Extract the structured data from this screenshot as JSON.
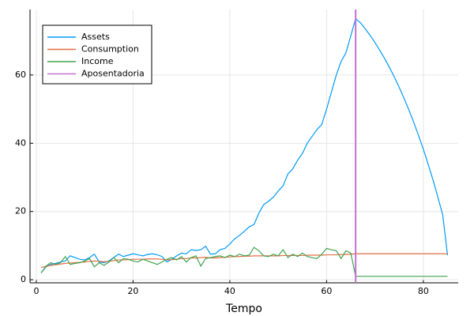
{
  "chart_data": {
    "type": "line",
    "x_label": "Tempo",
    "x": [
      1,
      2,
      3,
      4,
      5,
      6,
      7,
      8,
      9,
      10,
      11,
      12,
      13,
      14,
      15,
      16,
      17,
      18,
      19,
      20,
      21,
      22,
      23,
      24,
      25,
      26,
      27,
      28,
      29,
      30,
      31,
      32,
      33,
      34,
      35,
      36,
      37,
      38,
      39,
      40,
      41,
      42,
      43,
      44,
      45,
      46,
      47,
      48,
      49,
      50,
      51,
      52,
      53,
      54,
      55,
      56,
      57,
      58,
      59,
      60,
      61,
      62,
      63,
      64,
      65,
      66,
      67,
      68,
      69,
      70,
      71,
      72,
      73,
      74,
      75,
      76,
      77,
      78,
      79,
      80,
      81,
      82,
      83,
      84,
      85
    ],
    "series": [
      {
        "name": "Assets",
        "color": "#009AFA",
        "values": [
          2.0,
          3.8,
          4.5,
          4.8,
          5.2,
          5.5,
          7.0,
          6.5,
          6.0,
          5.8,
          6.5,
          7.5,
          5.2,
          5.0,
          5.5,
          6.5,
          7.5,
          6.8,
          7.2,
          7.6,
          7.3,
          7.0,
          7.4,
          7.6,
          7.3,
          6.8,
          5.2,
          6.0,
          7.0,
          7.8,
          7.6,
          8.8,
          8.6,
          8.8,
          9.8,
          7.5,
          7.6,
          8.8,
          9.2,
          10.5,
          12.0,
          13.0,
          14.2,
          15.5,
          16.2,
          19.5,
          22.0,
          23.0,
          24.2,
          26.0,
          27.5,
          31.0,
          32.5,
          35.0,
          37.0,
          40.0,
          42.0,
          44.0,
          45.5,
          50.0,
          55.0,
          60.0,
          64.0,
          66.5,
          71.5,
          76.5,
          75.3,
          73.5,
          71.6,
          69.5,
          67.2,
          64.8,
          62.2,
          59.4,
          56.4,
          53.2,
          49.8,
          46.2,
          42.3,
          38.2,
          33.8,
          29.2,
          24.2,
          19.0,
          7.2
        ]
      },
      {
        "name": "Consumption",
        "color": "#E36F47",
        "values": [
          3.6,
          3.9,
          4.2,
          4.4,
          4.6,
          4.8,
          4.9,
          5.0,
          5.1,
          5.2,
          5.4,
          5.5,
          5.4,
          5.3,
          5.4,
          5.6,
          5.8,
          5.8,
          5.9,
          6.0,
          6.0,
          6.0,
          6.1,
          6.1,
          6.1,
          6.0,
          5.8,
          5.9,
          6.0,
          6.2,
          6.2,
          6.4,
          6.4,
          6.5,
          6.6,
          6.4,
          6.4,
          6.5,
          6.6,
          6.7,
          6.8,
          6.8,
          6.9,
          6.9,
          7.0,
          7.0,
          7.0,
          7.0,
          7.0,
          7.0,
          7.1,
          7.1,
          7.1,
          7.1,
          7.1,
          7.2,
          7.2,
          7.2,
          7.2,
          7.3,
          7.3,
          7.3,
          7.4,
          7.4,
          7.5,
          7.6,
          7.6,
          7.6,
          7.6,
          7.6,
          7.6,
          7.6,
          7.6,
          7.6,
          7.6,
          7.6,
          7.6,
          7.6,
          7.6,
          7.6,
          7.6,
          7.6,
          7.6,
          7.6,
          7.6
        ]
      },
      {
        "name": "Income",
        "color": "#3EA44E",
        "values": [
          2.0,
          4.0,
          5.0,
          4.5,
          5.0,
          6.8,
          4.5,
          4.8,
          5.0,
          5.5,
          6.2,
          3.8,
          5.0,
          4.2,
          5.2,
          6.5,
          5.0,
          6.2,
          6.0,
          5.5,
          5.2,
          6.0,
          5.5,
          5.0,
          4.5,
          5.2,
          6.0,
          6.5,
          5.8,
          6.8,
          5.2,
          6.5,
          7.0,
          4.0,
          6.2,
          6.5,
          6.8,
          7.0,
          6.5,
          7.2,
          6.8,
          7.5,
          7.0,
          7.2,
          9.5,
          8.5,
          7.0,
          6.8,
          7.5,
          7.0,
          8.8,
          6.5,
          7.5,
          6.8,
          7.8,
          6.8,
          6.5,
          6.2,
          7.5,
          9.2,
          8.8,
          8.5,
          6.2,
          8.5,
          7.8,
          1.0,
          1.0,
          1.0,
          1.0,
          1.0,
          1.0,
          1.0,
          1.0,
          1.0,
          1.0,
          1.0,
          1.0,
          1.0,
          1.0,
          1.0,
          1.0,
          1.0,
          1.0,
          1.0,
          1.0
        ]
      }
    ],
    "vlines": [
      {
        "name": "Aposentadoria",
        "color": "#C271D2",
        "x": 66
      }
    ],
    "xlim": [
      -1.3,
      87.2
    ],
    "xticks": [
      0,
      20,
      40,
      60,
      80
    ],
    "ylim": [
      -0.9,
      79.2
    ],
    "yticks": [
      0,
      20,
      40,
      60
    ],
    "grid": true,
    "legend": "top-left"
  }
}
